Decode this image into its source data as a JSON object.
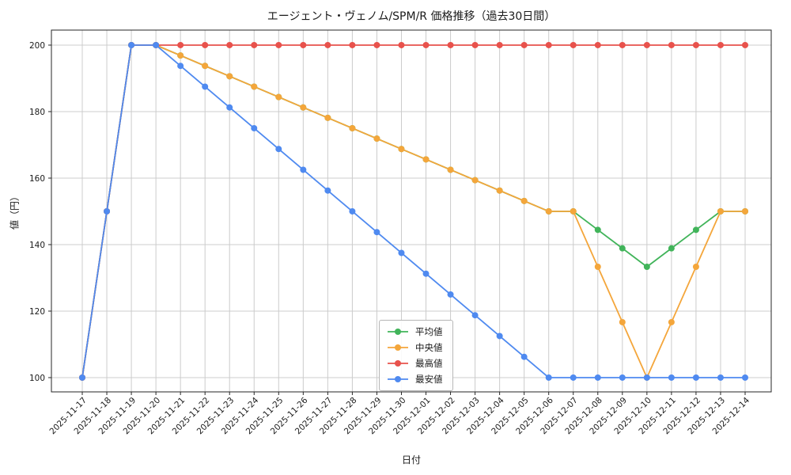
{
  "figure_title": "エージェント・ヴェノム/SPM/R 価格推移（過去30日間）",
  "chart_data": {
    "type": "line",
    "title": "エージェント・ヴェノム/SPM/R 価格推移（過去30日間）",
    "xlabel": "日付",
    "ylabel": "値（円）",
    "grid": true,
    "legend_position": "lower-center-inside",
    "ylim": [
      95.71,
      204.52
    ],
    "yticks": [
      100,
      120,
      140,
      160,
      180,
      200
    ],
    "x": [
      "2025-11-17",
      "2025-11-18",
      "2025-11-19",
      "2025-11-20",
      "2025-11-21",
      "2025-11-22",
      "2025-11-23",
      "2025-11-24",
      "2025-11-25",
      "2025-11-26",
      "2025-11-27",
      "2025-11-28",
      "2025-11-29",
      "2025-11-30",
      "2025-12-01",
      "2025-12-02",
      "2025-12-03",
      "2025-12-04",
      "2025-12-05",
      "2025-12-06",
      "2025-12-07",
      "2025-12-08",
      "2025-12-09",
      "2025-12-10",
      "2025-12-11",
      "2025-12-12",
      "2025-12-13",
      "2025-12-14"
    ],
    "series": [
      {
        "key": "mean",
        "name": "平均値",
        "color": "#41b45a",
        "values": [
          100,
          150,
          200,
          200,
          196.88,
          193.75,
          190.63,
          187.5,
          184.38,
          181.25,
          178.13,
          175,
          171.88,
          168.75,
          165.63,
          162.5,
          159.38,
          156.25,
          153.13,
          150,
          150,
          144.44,
          138.89,
          133.33,
          138.89,
          144.44,
          150,
          150
        ]
      },
      {
        "key": "median",
        "name": "中央値",
        "color": "#f4a63b",
        "values": [
          100,
          150,
          200,
          200,
          196.88,
          193.75,
          190.63,
          187.5,
          184.38,
          181.25,
          178.13,
          175,
          171.88,
          168.75,
          165.63,
          162.5,
          159.38,
          156.25,
          153.13,
          150,
          150,
          133.33,
          116.67,
          100,
          116.67,
          133.33,
          150,
          150
        ]
      },
      {
        "key": "max",
        "name": "最高値",
        "color": "#e8524c",
        "values": [
          100,
          150,
          200,
          200,
          200,
          200,
          200,
          200,
          200,
          200,
          200,
          200,
          200,
          200,
          200,
          200,
          200,
          200,
          200,
          200,
          200,
          200,
          200,
          200,
          200,
          200,
          200,
          200
        ]
      },
      {
        "key": "min",
        "name": "最安値",
        "color": "#4f8af0",
        "values": [
          100,
          150,
          200,
          200,
          193.75,
          187.5,
          181.25,
          175,
          168.75,
          162.5,
          156.25,
          150,
          143.75,
          137.5,
          131.25,
          125,
          118.75,
          112.5,
          106.25,
          100,
          100,
          100,
          100,
          100,
          100,
          100,
          100,
          100
        ]
      }
    ]
  }
}
